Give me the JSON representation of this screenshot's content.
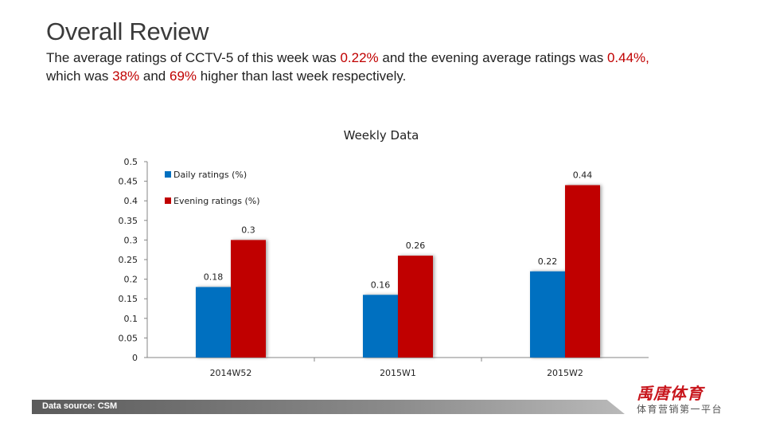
{
  "header": {
    "title": "Overall Review",
    "line1_a": "The average ratings of CCTV-5 of this week was ",
    "line1_v1": "0.22%",
    "line1_b": " and the evening average ratings was ",
    "line1_v2": "0.44%,",
    "line2_a": "which was ",
    "line2_v1": "38%",
    "line2_b": " and ",
    "line2_v2": "69%",
    "line2_c": " higher than last week respectively."
  },
  "colors": {
    "daily": "#0070c0",
    "evening": "#c00000",
    "highlight": "#c00000"
  },
  "chart_data": {
    "type": "bar",
    "title": "Weekly Data",
    "categories": [
      "2014W52",
      "2015W1",
      "2015W2"
    ],
    "series": [
      {
        "name": "Daily ratings (%)",
        "values": [
          0.18,
          0.16,
          0.22
        ]
      },
      {
        "name": "Evening ratings (%)",
        "values": [
          0.3,
          0.26,
          0.44
        ]
      }
    ],
    "yticks": [
      "0",
      "0.05",
      "0.1",
      "0.15",
      "0.2",
      "0.25",
      "0.3",
      "0.35",
      "0.4",
      "0.45",
      "0.5"
    ],
    "ylim": [
      0,
      0.5
    ],
    "xlabel": "",
    "ylabel": "",
    "legend": "top-left"
  },
  "footer": {
    "source": "Data source: CSM",
    "logo_main": "禹唐体育",
    "logo_sub": "体育营销第一平台"
  }
}
